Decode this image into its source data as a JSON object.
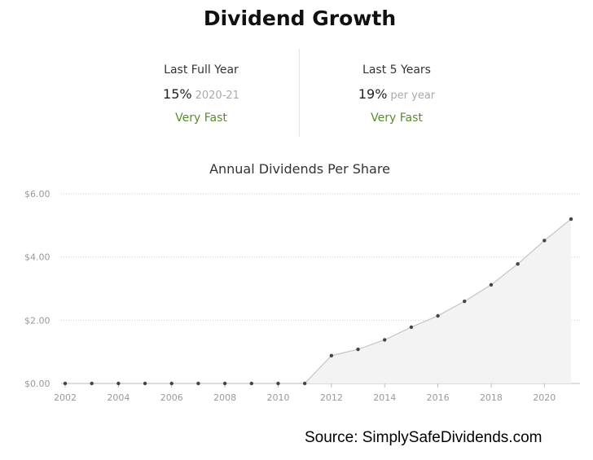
{
  "page_title": "Dividend Growth",
  "stats": [
    {
      "label": "Last Full Year",
      "value": "15%",
      "suffix": "2020-21",
      "rating": "Very Fast"
    },
    {
      "label": "Last 5 Years",
      "value": "19%",
      "suffix": "per year",
      "rating": "Very Fast"
    }
  ],
  "source": "Source: SimplySafeDividends.com",
  "colors": {
    "rating": "#5b8a2c",
    "line": "#c8c8c8",
    "area": "#f3f3f3",
    "point": "#444444"
  },
  "chart_data": {
    "type": "area",
    "title": "Annual Dividends Per Share",
    "xlabel": "",
    "ylabel": "",
    "x": [
      2002,
      2003,
      2004,
      2005,
      2006,
      2007,
      2008,
      2009,
      2010,
      2011,
      2012,
      2013,
      2014,
      2015,
      2016,
      2017,
      2018,
      2019,
      2020,
      2021
    ],
    "values": [
      0,
      0,
      0,
      0,
      0,
      0,
      0,
      0,
      0,
      0,
      0.88,
      1.08,
      1.38,
      1.78,
      2.14,
      2.6,
      3.12,
      3.78,
      4.52,
      5.2
    ],
    "ylim": [
      0,
      6
    ],
    "y_ticks": [
      0,
      2,
      4,
      6
    ],
    "y_tick_labels": [
      "$0.00",
      "$2.00",
      "$4.00",
      "$6.00"
    ],
    "x_ticks": [
      2002,
      2004,
      2006,
      2008,
      2010,
      2012,
      2014,
      2016,
      2018,
      2020
    ],
    "x_tick_labels": [
      "2002",
      "2004",
      "2006",
      "2008",
      "2010",
      "2012",
      "2014",
      "2016",
      "2018",
      "2020"
    ],
    "grid": true,
    "legend": "none"
  }
}
